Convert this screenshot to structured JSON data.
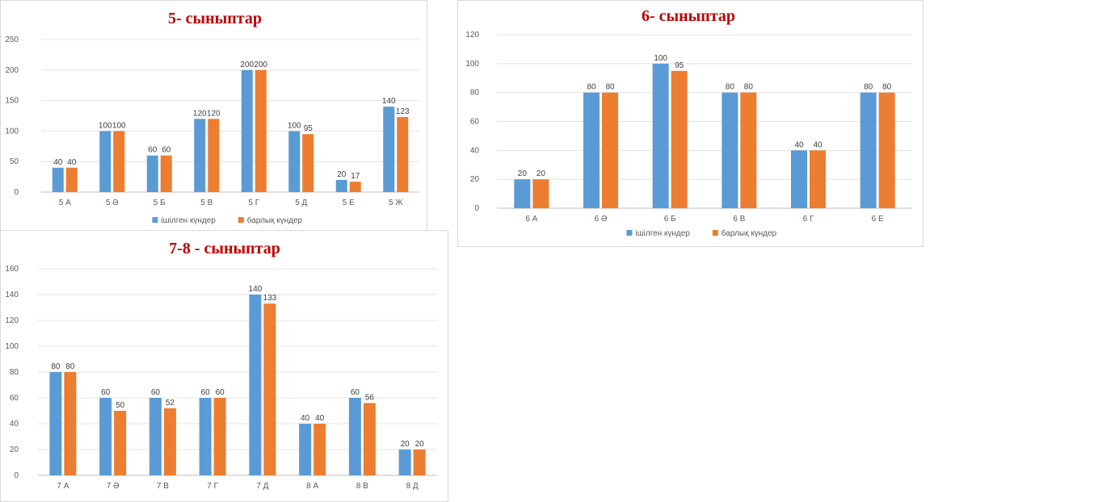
{
  "chart_data": [
    {
      "type": "bar",
      "title": "5- сыныптар",
      "categories": [
        "5 А",
        "5 Ә",
        "5 Б",
        "5 В",
        "5 Г",
        "5 Д",
        "5 Е",
        "5 Ж"
      ],
      "series": [
        {
          "name": "ішілген күндер",
          "color": "#5b9bd5",
          "values": [
            40,
            100,
            60,
            120,
            200,
            100,
            20,
            140
          ]
        },
        {
          "name": "барлық күндер",
          "color": "#ed7d31",
          "values": [
            40,
            100,
            60,
            120,
            200,
            95,
            17,
            123
          ]
        }
      ],
      "ylim": [
        0,
        250
      ],
      "yticks": [
        0,
        50,
        100,
        150,
        200,
        250
      ],
      "grid": true,
      "legend": "bottom"
    },
    {
      "type": "bar",
      "title": "6- сыныптар",
      "categories": [
        "6 А",
        "6 Ә",
        "6 Б",
        "6 В",
        "6 Г",
        "6 Е"
      ],
      "series": [
        {
          "name": "ішілген күндер",
          "color": "#5b9bd5",
          "values": [
            20,
            80,
            100,
            80,
            40,
            80
          ]
        },
        {
          "name": "барлық күндер",
          "color": "#ed7d31",
          "values": [
            20,
            80,
            95,
            80,
            40,
            80
          ]
        }
      ],
      "ylim": [
        0,
        120
      ],
      "yticks": [
        0,
        20,
        40,
        60,
        80,
        100,
        120
      ],
      "grid": true,
      "legend": "bottom"
    },
    {
      "type": "bar",
      "title": "7-8 - сыныптар",
      "categories": [
        "7 А",
        "7 Ә",
        "7 В",
        "7 Г",
        "7 Д",
        "8 А",
        "8 В",
        "8 Д"
      ],
      "series": [
        {
          "name": "",
          "color": "#5b9bd5",
          "values": [
            80,
            60,
            60,
            60,
            140,
            40,
            60,
            20
          ]
        },
        {
          "name": "",
          "color": "#ed7d31",
          "values": [
            80,
            50,
            52,
            60,
            133,
            40,
            56,
            20
          ]
        }
      ],
      "ylim": [
        0,
        160
      ],
      "yticks": [
        0,
        20,
        40,
        60,
        80,
        100,
        120,
        140,
        160
      ],
      "grid": true,
      "legend": "none"
    }
  ]
}
